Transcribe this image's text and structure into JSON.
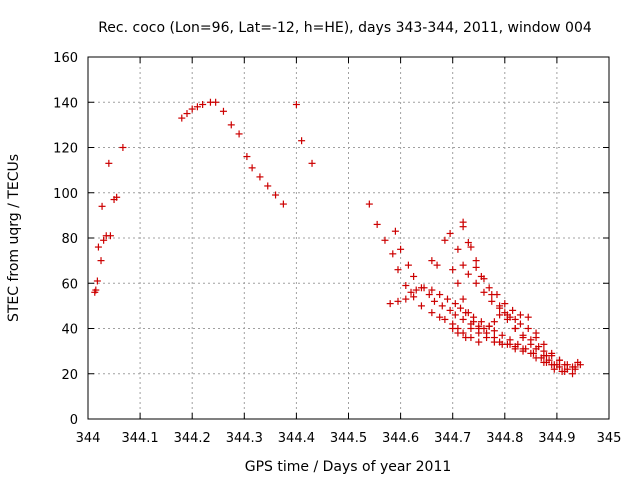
{
  "chart_data": {
    "type": "scatter",
    "title": "Rec. coco (Lon=96, Lat=-12, h=HE), days 343-344, 2011, window 004",
    "xlabel": "GPS time / Days of year 2011",
    "ylabel": "STEC from uqrg / TECUs",
    "xlim": [
      344,
      345
    ],
    "ylim": [
      0,
      160
    ],
    "x_ticks": [
      "344",
      "344.1",
      "344.2",
      "344.3",
      "344.4",
      "344.5",
      "344.6",
      "344.7",
      "344.8",
      "344.9",
      "345"
    ],
    "y_ticks": [
      "0",
      "20",
      "40",
      "60",
      "80",
      "100",
      "120",
      "140",
      "160"
    ],
    "grid": true,
    "marker": "+",
    "color": "#cc0000",
    "series": [
      {
        "x": [
          344.013,
          344.015,
          344.018,
          344.02,
          344.025,
          344.027,
          344.03,
          344.035,
          344.04,
          344.043,
          344.05,
          344.055,
          344.067
        ],
        "y": [
          56,
          57,
          61,
          76,
          70,
          94,
          79,
          81,
          113,
          81,
          97,
          98,
          120
        ]
      },
      {
        "x": [
          344.18,
          344.19,
          344.2,
          344.21,
          344.22,
          344.235,
          344.245,
          344.26,
          344.275,
          344.29,
          344.305,
          344.315,
          344.33,
          344.345,
          344.36,
          344.375,
          344.4,
          344.41,
          344.43
        ],
        "y": [
          133,
          135,
          137,
          138,
          139,
          140,
          140,
          136,
          130,
          126,
          116,
          111,
          107,
          103,
          99,
          95,
          139,
          123,
          113
        ]
      },
      {
        "x": [
          344.54,
          344.555,
          344.57,
          344.585,
          344.595,
          344.61,
          344.625,
          344.64,
          344.66,
          344.675,
          344.685,
          344.7,
          344.71,
          344.72,
          344.735,
          344.75
        ],
        "y": [
          95,
          86,
          79,
          73,
          66,
          59,
          54,
          50,
          47,
          45,
          44,
          42,
          40,
          38,
          36,
          34
        ],
        "note": ""
      },
      {
        "x": [
          344.59,
          344.6,
          344.615,
          344.625,
          344.64,
          344.655,
          344.665,
          344.68,
          344.695,
          344.705,
          344.72,
          344.735,
          344.75,
          344.765,
          344.78,
          344.79,
          344.805,
          344.82,
          344.835,
          344.85,
          344.86,
          344.875,
          344.89,
          344.905,
          344.92,
          344.935
        ],
        "y": [
          83,
          75,
          68,
          63,
          58,
          55,
          52,
          50,
          48,
          46,
          44,
          42,
          40,
          38,
          36,
          34,
          33,
          31,
          30,
          29,
          27,
          25,
          24,
          23,
          22,
          22
        ]
      },
      {
        "x": [
          344.66,
          344.67,
          344.685,
          344.695,
          344.71,
          344.72,
          344.73,
          344.745,
          344.76,
          344.775,
          344.79,
          344.805,
          344.82,
          344.83,
          344.845,
          344.86,
          344.875,
          344.89,
          344.905,
          344.92,
          344.935,
          344.945
        ],
        "y": [
          70,
          68,
          79,
          82,
          75,
          68,
          64,
          60,
          56,
          52,
          49,
          46,
          44,
          42,
          40,
          38,
          33,
          29,
          26,
          24,
          23,
          24
        ]
      },
      {
        "x": [
          344.72,
          344.735,
          344.745,
          344.755,
          344.77,
          344.785,
          344.8,
          344.815,
          344.83,
          344.845,
          344.86,
          344.875,
          344.89,
          344.905,
          344.915,
          344.93,
          344.94
        ],
        "y": [
          85,
          76,
          67,
          63,
          58,
          55,
          51,
          48,
          46,
          45,
          36,
          30,
          28,
          26,
          24,
          23,
          25
        ]
      },
      {
        "x": [
          344.58,
          344.595,
          344.61,
          344.62,
          344.63,
          344.645,
          344.66,
          344.675,
          344.69,
          344.705,
          344.715,
          344.725,
          344.74,
          344.755,
          344.77,
          344.78,
          344.795,
          344.81,
          344.825,
          344.84,
          344.855,
          344.87,
          344.88,
          344.895
        ],
        "y": [
          51,
          52,
          53,
          56,
          57,
          58,
          57,
          55,
          53,
          51,
          49,
          47,
          45,
          43,
          41,
          39,
          37,
          35,
          33,
          31,
          29,
          27,
          25,
          22
        ]
      },
      {
        "x": [
          344.7,
          344.71,
          344.72,
          344.73,
          344.74,
          344.75,
          344.76,
          344.77,
          344.78,
          344.79,
          344.8,
          344.81,
          344.82,
          344.835,
          344.85,
          344.86,
          344.875,
          344.885,
          344.9,
          344.915,
          344.93
        ],
        "y": [
          66,
          60,
          53,
          47,
          43,
          41,
          40,
          41,
          43,
          46,
          47,
          45,
          40,
          36,
          33,
          31,
          28,
          26,
          24,
          21,
          20
        ]
      },
      {
        "x": [
          344.72,
          344.73,
          344.745,
          344.76,
          344.775,
          344.79,
          344.805,
          344.82,
          344.835,
          344.85,
          344.865,
          344.88,
          344.895,
          344.91
        ],
        "y": [
          87,
          78,
          70,
          62,
          55,
          50,
          44,
          40,
          37,
          35,
          32,
          28,
          24,
          21
        ]
      },
      {
        "x": [
          344.7,
          344.71,
          344.725,
          344.735,
          344.75,
          344.765,
          344.78,
          344.795,
          344.81,
          344.82,
          344.835
        ],
        "y": [
          40,
          38,
          36,
          40,
          38,
          36,
          34,
          33,
          33,
          32,
          31
        ]
      }
    ]
  }
}
